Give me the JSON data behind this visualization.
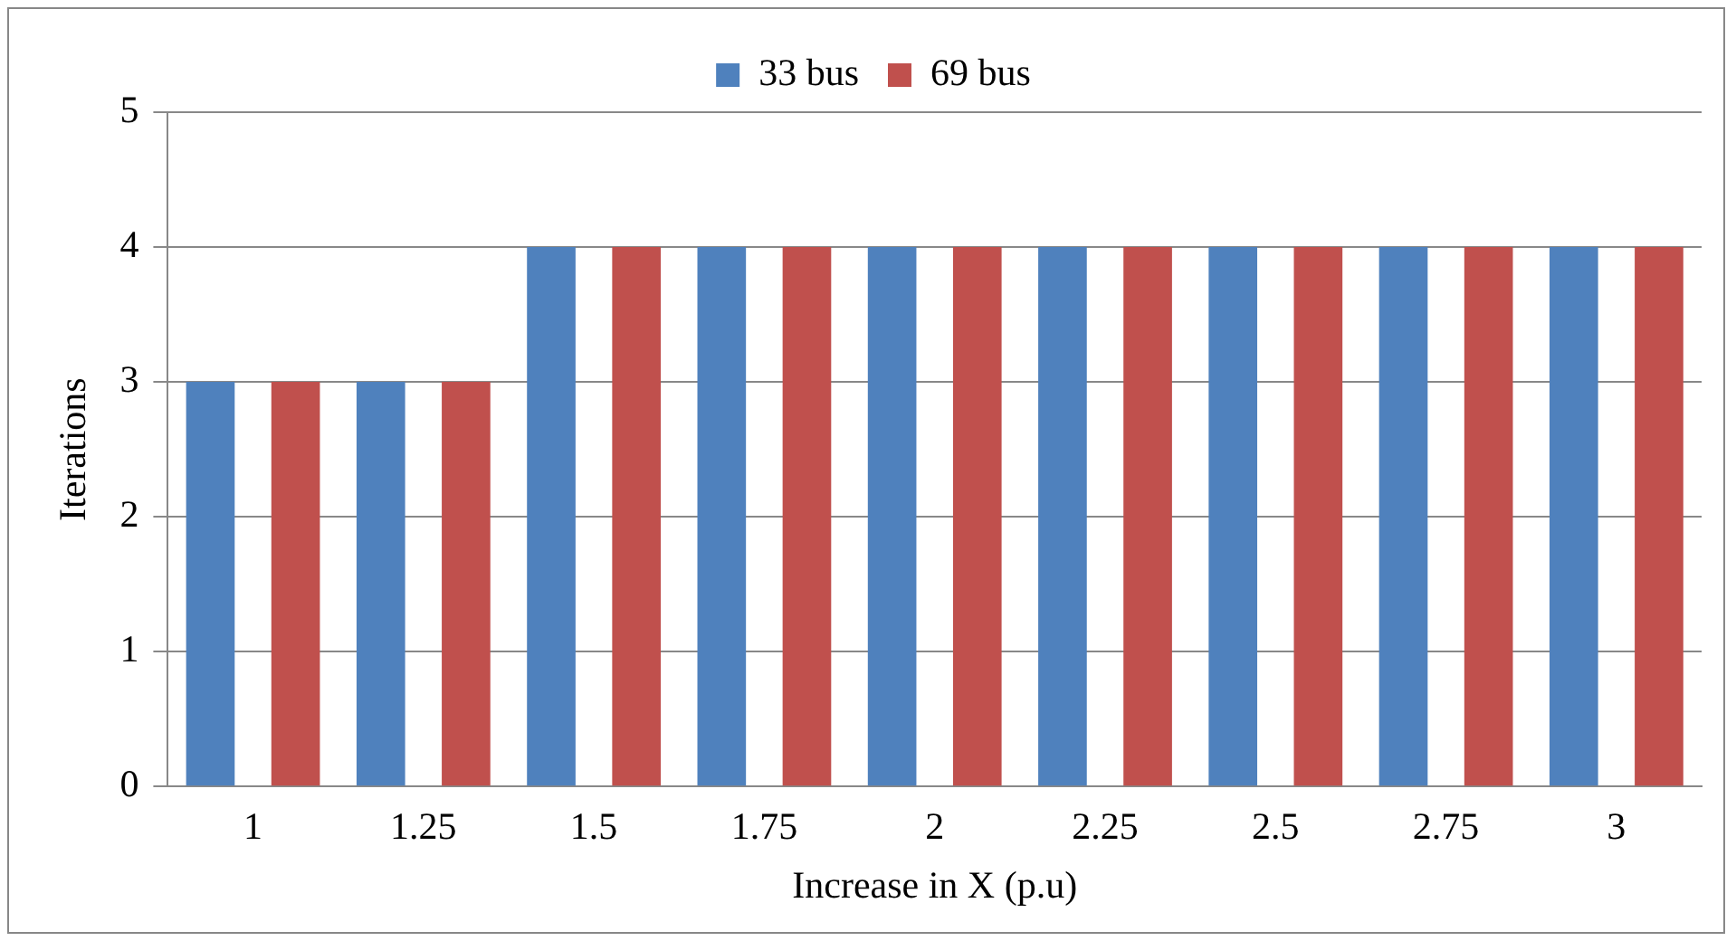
{
  "chart_data": {
    "type": "bar",
    "xlabel": "Increase in X (p.u)",
    "ylabel": "Iterations",
    "categories": [
      "1",
      "1.25",
      "1.5",
      "1.75",
      "2",
      "2.25",
      "2.5",
      "2.75",
      "3"
    ],
    "series": [
      {
        "name": "33 bus",
        "color": "#4f81bd",
        "values": [
          3,
          3,
          4,
          4,
          4,
          4,
          4,
          4,
          4
        ]
      },
      {
        "name": "69 bus",
        "color": "#c0504d",
        "values": [
          3,
          3,
          4,
          4,
          4,
          4,
          4,
          4,
          4
        ]
      }
    ],
    "ylim": [
      0,
      5
    ],
    "yticks": [
      0,
      1,
      2,
      3,
      4,
      5
    ],
    "grid": "y",
    "legend": "top"
  }
}
